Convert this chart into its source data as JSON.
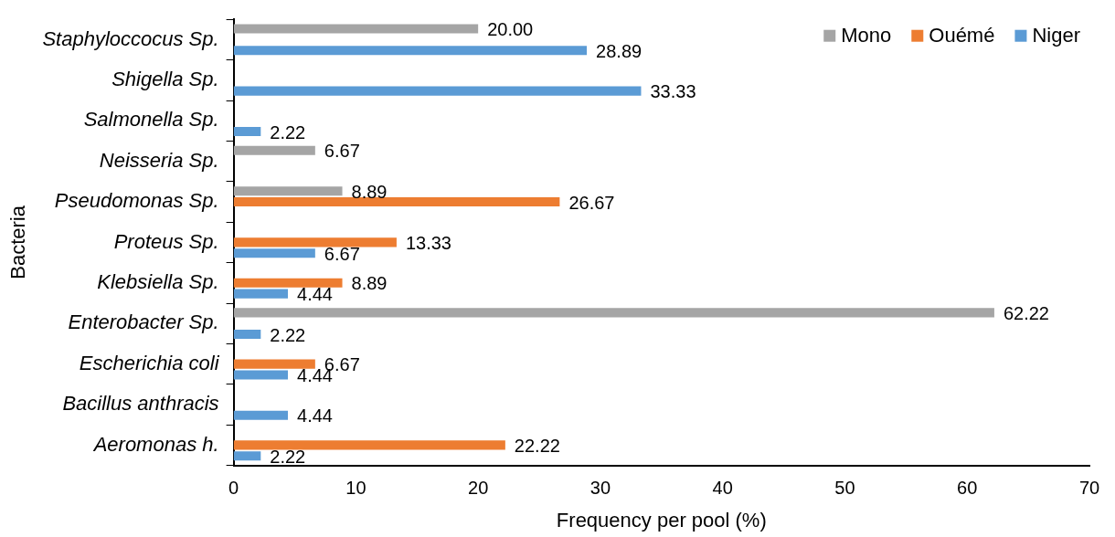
{
  "chart_data": {
    "type": "bar",
    "orientation": "horizontal",
    "xlabel": "Frequency per pool (%)",
    "ylabel": "Bacteria",
    "categories": [
      "Staphyloccocus Sp.",
      "Shigella Sp.",
      "Salmonella Sp.",
      "Neisseria Sp.",
      "Pseudomonas Sp.",
      "Proteus Sp.",
      "Klebsiella Sp.",
      "Enterobacter Sp.",
      "Escherichia coli",
      "Bacillus anthracis",
      "Aeromonas h."
    ],
    "series": [
      {
        "name": "Mono",
        "color": "#a5a5a5",
        "values": [
          20,
          null,
          null,
          6.67,
          8.89,
          null,
          null,
          62.22,
          null,
          null,
          null
        ],
        "value_labels": [
          "20.00",
          null,
          null,
          "6.67",
          "8.89",
          null,
          null,
          "62.22",
          null,
          null,
          null
        ]
      },
      {
        "name": "Ouémé",
        "color": "#ed7d31",
        "values": [
          null,
          null,
          null,
          null,
          26.67,
          13.33,
          8.89,
          null,
          6.67,
          null,
          22.22
        ],
        "value_labels": [
          null,
          null,
          null,
          null,
          "26.67",
          "13.33",
          "8.89",
          null,
          "6.67",
          null,
          "22.22"
        ]
      },
      {
        "name": "Niger",
        "color": "#5b9bd5",
        "values": [
          28.89,
          33.33,
          2.22,
          null,
          null,
          6.67,
          4.44,
          2.22,
          4.44,
          4.44,
          2.22
        ],
        "value_labels": [
          "28.89",
          "33.33",
          "2.22",
          null,
          null,
          "6.67",
          "4.44",
          "2.22",
          "4.44",
          "4.44",
          "2.22"
        ]
      }
    ],
    "xlim": [
      0,
      70
    ],
    "xticks": [
      0,
      10,
      20,
      30,
      40,
      50,
      60,
      70
    ],
    "grid": false,
    "legend": "top right"
  }
}
